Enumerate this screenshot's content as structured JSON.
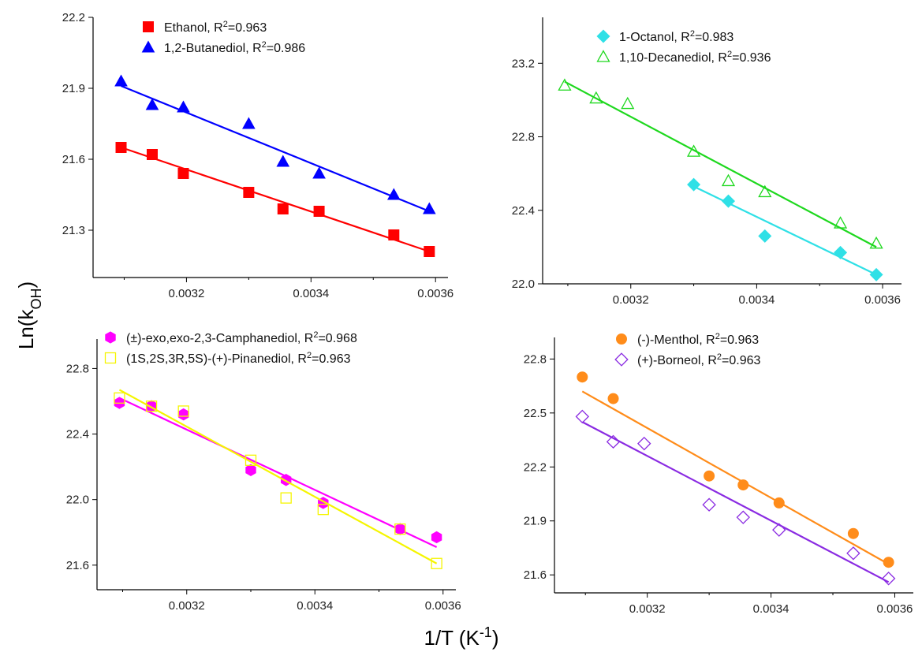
{
  "figure": {
    "ylabel": "Ln(k_OH)",
    "xlabel": "1/T (K^-1)"
  },
  "chart_data": [
    {
      "type": "scatter",
      "xlim": [
        0.00305,
        0.00362
      ],
      "ylim": [
        21.1,
        22.2
      ],
      "xticks": [
        0.0032,
        0.0034,
        0.0036
      ],
      "yticks": [
        21.3,
        21.6,
        21.9,
        22.2
      ],
      "series": [
        {
          "name": "Ethanol, R²=0.963",
          "color": "#ff0000",
          "marker": "square",
          "filled": true,
          "x": [
            0.003095,
            0.003145,
            0.003195,
            0.0033,
            0.003355,
            0.003413,
            0.003533,
            0.00359
          ],
          "y": [
            21.65,
            21.62,
            21.54,
            21.46,
            21.39,
            21.38,
            21.28,
            21.21
          ],
          "fit": [
            [
              0.003095,
              21.65
            ],
            [
              0.00359,
              21.21
            ]
          ]
        },
        {
          "name": "1,2-Butanediol, R²=0.986",
          "color": "#0000ff",
          "marker": "triangle",
          "filled": true,
          "x": [
            0.003095,
            0.003145,
            0.003195,
            0.0033,
            0.003355,
            0.003413,
            0.003533,
            0.00359
          ],
          "y": [
            21.93,
            21.83,
            21.82,
            21.75,
            21.59,
            21.54,
            21.45,
            21.39
          ],
          "fit": [
            [
              0.003095,
              21.91
            ],
            [
              0.00359,
              21.38
            ]
          ]
        }
      ]
    },
    {
      "type": "scatter",
      "xlim": [
        0.00306,
        0.00363
      ],
      "ylim": [
        22.0,
        23.45
      ],
      "xticks": [
        0.0032,
        0.0034,
        0.0036
      ],
      "yticks": [
        22.0,
        22.4,
        22.8,
        23.2
      ],
      "series": [
        {
          "name": "1-Octanol, R²=0.983",
          "color": "#2fe0e6",
          "marker": "diamond",
          "filled": true,
          "x": [
            0.0033,
            0.003355,
            0.003413,
            0.003533,
            0.00359
          ],
          "y": [
            22.54,
            22.45,
            22.26,
            22.17,
            22.05
          ],
          "fit": [
            [
              0.0033,
              22.53
            ],
            [
              0.00359,
              22.05
            ]
          ]
        },
        {
          "name": "1,10-Decanediol, R²=0.936",
          "color": "#1ed81e",
          "marker": "triangle",
          "filled": false,
          "x": [
            0.003095,
            0.003145,
            0.003195,
            0.0033,
            0.003355,
            0.003413,
            0.003533,
            0.00359
          ],
          "y": [
            23.08,
            23.01,
            22.98,
            22.72,
            22.56,
            22.5,
            22.33,
            22.22
          ],
          "fit": [
            [
              0.003095,
              23.1
            ],
            [
              0.00359,
              22.2
            ]
          ]
        }
      ]
    },
    {
      "type": "scatter",
      "xlim": [
        0.00306,
        0.00362
      ],
      "ylim": [
        21.45,
        22.98
      ],
      "xticks": [
        0.0032,
        0.0034,
        0.0036
      ],
      "yticks": [
        21.6,
        22.0,
        22.4,
        22.8
      ],
      "series": [
        {
          "name": "(±)-exo,exo-2,3-Camphanediol, R²=0.968",
          "color": "#ff00ff",
          "marker": "hexagon",
          "filled": true,
          "x": [
            0.003095,
            0.003145,
            0.003195,
            0.0033,
            0.003355,
            0.003413,
            0.003533,
            0.00359
          ],
          "y": [
            22.59,
            22.57,
            22.52,
            22.18,
            22.12,
            21.98,
            21.82,
            21.77
          ],
          "fit": [
            [
              0.003095,
              22.62
            ],
            [
              0.00359,
              21.71
            ]
          ]
        },
        {
          "name": "(1S,2S,3R,5S)-(+)-Pinanediol, R²=0.963",
          "color": "#f5f500",
          "marker": "square",
          "filled": false,
          "x": [
            0.003095,
            0.003145,
            0.003195,
            0.0033,
            0.003355,
            0.003413,
            0.003533,
            0.00359
          ],
          "y": [
            22.62,
            22.57,
            22.54,
            22.24,
            22.01,
            21.94,
            21.82,
            21.61
          ],
          "fit": [
            [
              0.003095,
              22.67
            ],
            [
              0.00359,
              21.61
            ]
          ]
        }
      ]
    },
    {
      "type": "scatter",
      "xlim": [
        0.00305,
        0.00363
      ],
      "ylim": [
        21.5,
        22.92
      ],
      "xticks": [
        0.0032,
        0.0034,
        0.0036
      ],
      "yticks": [
        21.6,
        21.9,
        22.2,
        22.5,
        22.8
      ],
      "series": [
        {
          "name": "(-)-Menthol, R²=0.963",
          "color": "#ff8c1a",
          "marker": "circle",
          "filled": true,
          "x": [
            0.003095,
            0.003145,
            0.0033,
            0.003355,
            0.003413,
            0.003533,
            0.00359
          ],
          "y": [
            22.7,
            22.58,
            22.15,
            22.1,
            22.0,
            21.83,
            21.67
          ],
          "fit": [
            [
              0.003095,
              22.62
            ],
            [
              0.00359,
              21.66
            ]
          ]
        },
        {
          "name": "(+)-Borneol, R²=0.963",
          "color": "#8a2be2",
          "marker": "diamond",
          "filled": false,
          "x": [
            0.003095,
            0.003145,
            0.003195,
            0.0033,
            0.003355,
            0.003413,
            0.003533,
            0.00359
          ],
          "y": [
            22.48,
            22.34,
            22.33,
            21.99,
            21.92,
            21.85,
            21.72,
            21.58
          ],
          "fit": [
            [
              0.003095,
              22.45
            ],
            [
              0.00359,
              21.56
            ]
          ]
        }
      ]
    }
  ]
}
